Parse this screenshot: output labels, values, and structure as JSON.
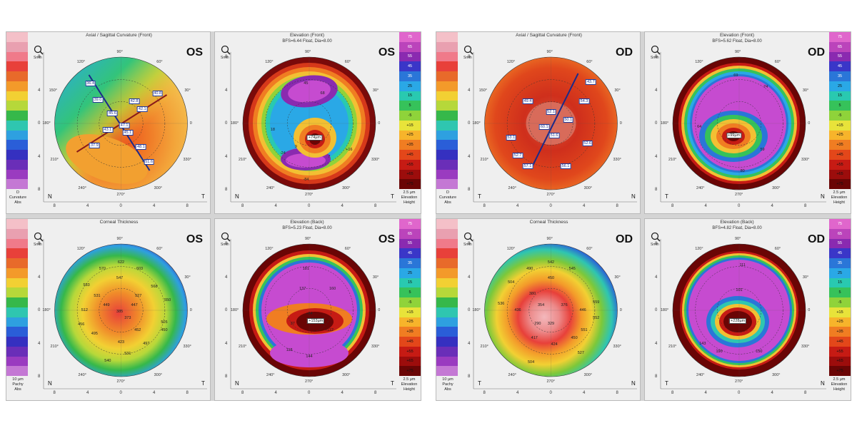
{
  "colors": {
    "elevation_scale": [
      "#e066cc",
      "#bb44bb",
      "#8a2ab0",
      "#3a36c8",
      "#2a76d8",
      "#2aa8e6",
      "#29c9b0",
      "#36c25a",
      "#8fd33a",
      "#e8e33a",
      "#f7b42b",
      "#f07d22",
      "#e3471a",
      "#c61b14",
      "#9c0d0c",
      "#6a0505"
    ],
    "rainbow_scale": [
      "#f4c0c8",
      "#e9a0b0",
      "#f07a8a",
      "#e8403a",
      "#e86a2a",
      "#f39a2a",
      "#f2d033",
      "#b6d83a",
      "#36b84a",
      "#2fc6b0",
      "#2ea0e0",
      "#2a5ed8",
      "#3530c0",
      "#6a2eb8",
      "#9a3bc0",
      "#c478d4"
    ]
  },
  "left": {
    "axial": {
      "title": "Axial / Sagittal Curvature (Front)",
      "eye": "OS",
      "mag": "Smth",
      "deg": {
        "d90": "90°",
        "d120": "120°",
        "d60": "60°",
        "d150": "150°",
        "d30": "30°",
        "d180": "180°",
        "d0": "0",
        "d210": "210°",
        "d330": "330°",
        "d240": "240°",
        "d300": "300°",
        "d270": "270°"
      },
      "side_left": "N",
      "side_right": "T",
      "x_ticks": [
        "8",
        "4",
        "0",
        "4",
        "8"
      ],
      "y_ticks": [
        "8",
        "4",
        "0",
        "4",
        "8"
      ],
      "values": [
        "36.4",
        "39.0",
        "42.8",
        "40.8",
        "45.6",
        "42.1",
        "43.1",
        "47.1",
        "45.1",
        "37.9",
        "48.1",
        "51.6"
      ],
      "scale_labels": [
        "",
        "",
        "",
        "",
        "",
        "",
        "",
        "",
        "",
        "",
        "",
        "",
        "",
        "",
        "",
        ""
      ],
      "scale_caption": [
        "D",
        "Curvature",
        "Abs"
      ]
    },
    "elev_front": {
      "title": "Elevation (Front)",
      "subtitle": "BFS=6.44 Float, Dia=8.00",
      "eye": "OS",
      "mag": "Smth",
      "deg": {
        "d90": "90°",
        "d60": "60°",
        "d120": "120°",
        "d30": "30°",
        "d180": "180°",
        "d0": "0",
        "d210": "210°",
        "d330": "330°",
        "d240": "240°",
        "d300": "300°",
        "d270": "270°"
      },
      "side_left": "N",
      "side_right": "T",
      "x_ticks": [
        "8",
        "4",
        "0",
        "4",
        "8"
      ],
      "y_ticks": [
        "8",
        "4",
        "0",
        "4",
        "8"
      ],
      "values": [
        "45",
        "68",
        "18",
        "9",
        "-24",
        "+16",
        "7",
        "-84"
      ],
      "apex": "+74µm",
      "scale_labels": [
        "75",
        "65",
        "55",
        "45",
        "35",
        "25",
        "15",
        "5",
        "-5",
        "+15",
        "+25",
        "+35",
        "+45",
        "+55",
        "+65",
        "+75"
      ],
      "scale_caption": [
        "2.5 µm",
        "Elevation",
        "Height"
      ]
    },
    "pachy": {
      "title": "Corneal Thickness",
      "eye": "OS",
      "mag": "Smth",
      "deg": {
        "d90": "90°",
        "d60": "60°",
        "d120": "120°",
        "d30": "30°",
        "d180": "180°",
        "d0": "0",
        "d210": "210°",
        "d330": "330°",
        "d240": "240°",
        "d300": "300°",
        "d270": "270°"
      },
      "side_left": "N",
      "side_right": "T",
      "x_ticks": [
        "8",
        "4",
        "0",
        "4",
        "8"
      ],
      "y_ticks": [
        "8",
        "4",
        "0",
        "4",
        "8"
      ],
      "values": [
        "622",
        "570",
        "603",
        "583",
        "547",
        "568",
        "531",
        "527",
        "550",
        "512",
        "449",
        "447",
        "385",
        "456",
        "505",
        "373",
        "450",
        "452",
        "495",
        "423",
        "497",
        "531",
        "540"
      ],
      "scale_labels": [
        "",
        "",
        "",
        "",
        "",
        "",
        "",
        "",
        "",
        "",
        "",
        "",
        "",
        "",
        "",
        ""
      ],
      "scale_caption": [
        "10 µm",
        "Pachy",
        "Abs"
      ]
    },
    "elev_back": {
      "title": "Elevation (Back)",
      "subtitle": "BFS=5.23 Float, Dia=8.00",
      "eye": "OS",
      "mag": "Smth",
      "deg": {
        "d90": "90°",
        "d60": "60°",
        "d120": "120°",
        "d30": "30°",
        "d180": "180°",
        "d0": "0",
        "d210": "210°",
        "d330": "330°",
        "d240": "240°",
        "d300": "300°",
        "d270": "270°"
      },
      "side_left": "N",
      "side_right": "T",
      "x_ticks": [
        "8",
        "4",
        "0",
        "4",
        "8"
      ],
      "y_ticks": [
        "8",
        "4",
        "0",
        "4",
        "8"
      ],
      "values": [
        "181",
        "137",
        "160",
        "+84",
        "+112",
        "37",
        "118",
        "144"
      ],
      "apex": "+153µm",
      "scale_labels": [
        "75",
        "65",
        "55",
        "45",
        "35",
        "25",
        "15",
        "5",
        "-5",
        "+15",
        "+25",
        "+35",
        "+45",
        "+55",
        "+65",
        "+75"
      ],
      "scale_caption": [
        "2.5 µm",
        "Elevation",
        "Height"
      ]
    }
  },
  "right": {
    "axial": {
      "title": "Axial / Sagittal Curvature (Front)",
      "eye": "OD",
      "mag": "Smth",
      "deg": {
        "d90": "90°",
        "d120": "120°",
        "d60": "60°",
        "d150": "150°",
        "d30": "30°",
        "d180": "180°",
        "d0": "0",
        "d210": "210°",
        "d330": "330°",
        "d240": "240°",
        "d300": "300°",
        "d270": "270°"
      },
      "side_left": "T",
      "side_right": "N",
      "x_ticks": [
        "8",
        "4",
        "0",
        "4",
        "8"
      ],
      "y_ticks": [
        "8",
        "4",
        "0",
        "4",
        "8"
      ],
      "values": [
        "43.7",
        "49.4",
        "54.3",
        "52.1",
        "50.1",
        "52.6",
        "53.1",
        "60.1",
        "51.6",
        "52.7",
        "57.1",
        "56.1"
      ],
      "scale_labels": [
        "",
        "",
        "",
        "",
        "",
        "",
        "",
        "",
        "",
        "",
        "",
        "",
        "",
        "",
        "",
        ""
      ],
      "scale_caption": [
        "D",
        "Curvature",
        "Abs"
      ]
    },
    "elev_front": {
      "title": "Elevation (Front)",
      "subtitle": "BFS=5.62 Float, Dia=8.00",
      "eye": "OD",
      "mag": "Smth",
      "deg": {
        "d90": "90°",
        "d60": "60°",
        "d120": "120°",
        "d30": "30°",
        "d180": "180°",
        "d0": "0",
        "d210": "210°",
        "d330": "330°",
        "d240": "240°",
        "d300": "300°",
        "d270": "270°"
      },
      "side_left": "T",
      "side_right": "N",
      "x_ticks": [
        "8",
        "4",
        "0",
        "4",
        "8"
      ],
      "y_ticks": [
        "8",
        "4",
        "0",
        "4",
        "8"
      ],
      "values": [
        "69",
        "74",
        "64",
        "59",
        "80"
      ],
      "apex": "+99µm",
      "scale_labels": [
        "75",
        "65",
        "55",
        "45",
        "35",
        "25",
        "15",
        "5",
        "-5",
        "+15",
        "+25",
        "+35",
        "+45",
        "+55",
        "+65",
        "+75"
      ],
      "scale_caption": [
        "2.5 µm",
        "Elevation",
        "Height"
      ]
    },
    "pachy": {
      "title": "Corneal Thickness",
      "eye": "OD",
      "mag": "Smth",
      "deg": {
        "d90": "90°",
        "d60": "60°",
        "d120": "120°",
        "d30": "30°",
        "d180": "180°",
        "d0": "0",
        "d210": "210°",
        "d330": "330°",
        "d240": "240°",
        "d300": "300°",
        "d270": "270°"
      },
      "side_left": "T",
      "side_right": "N",
      "x_ticks": [
        "8",
        "4",
        "0",
        "4",
        "8"
      ],
      "y_ticks": [
        "8",
        "4",
        "0",
        "4",
        "8"
      ],
      "values": [
        "542",
        "490",
        "545",
        "504",
        "450",
        "536",
        "380",
        "354",
        "376",
        "436",
        "446",
        "290",
        "329",
        "559",
        "552",
        "417",
        "424",
        "450",
        "551",
        "504",
        "527"
      ],
      "scale_labels": [
        "",
        "",
        "",
        "",
        "",
        "",
        "",
        "",
        "",
        "",
        "",
        "",
        "",
        "",
        "",
        ""
      ],
      "scale_caption": [
        "10 µm",
        "Pachy",
        "Abs"
      ]
    },
    "elev_back": {
      "title": "Elevation (Back)",
      "subtitle": "BFS=4.82 Float, Dia=8.00",
      "eye": "OD",
      "mag": "Smth",
      "deg": {
        "d90": "90°",
        "d60": "60°",
        "d120": "120°",
        "d30": "30°",
        "d180": "180°",
        "d0": "0",
        "d210": "210°",
        "d330": "330°",
        "d240": "240°",
        "d300": "300°",
        "d270": "270°"
      },
      "side_left": "T",
      "side_right": "N",
      "x_ticks": [
        "8",
        "4",
        "0",
        "4",
        "8"
      ],
      "y_ticks": [
        "8",
        "4",
        "0",
        "4",
        "8"
      ],
      "values": [
        "111",
        "101",
        "143",
        "190",
        "150"
      ],
      "apex": "+228µm",
      "scale_labels": [
        "75",
        "65",
        "55",
        "45",
        "35",
        "25",
        "15",
        "5",
        "-5",
        "+15",
        "+25",
        "+35",
        "+45",
        "+55",
        "+65",
        "+75"
      ],
      "scale_caption": [
        "2.5 µm",
        "Elevation",
        "Height"
      ]
    }
  }
}
